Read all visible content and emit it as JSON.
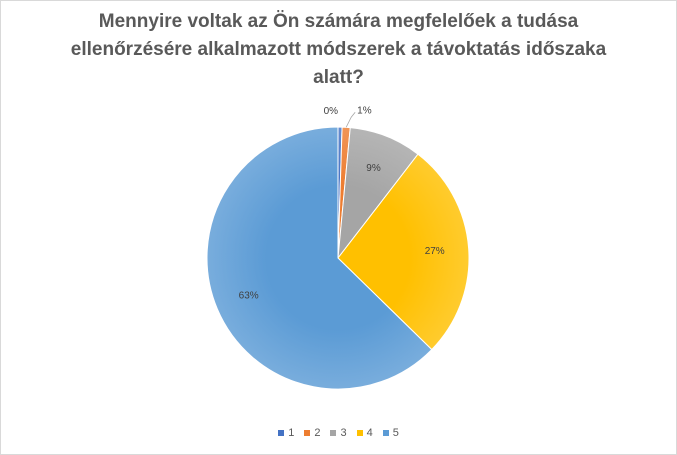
{
  "chart_data": {
    "type": "pie",
    "title_lines": [
      "Mennyire voltak az Ön számára  megfelelőek a tudása",
      "ellenőrzésére alkalmazott  módszerek a távoktatás időszaka",
      "alatt?"
    ],
    "categories": [
      "1",
      "2",
      "3",
      "4",
      "5"
    ],
    "values": [
      0.5,
      1,
      9,
      27,
      63
    ],
    "labels": [
      "0%",
      "1%",
      "9%",
      "27%",
      "63%"
    ],
    "colors": [
      "#4472c4",
      "#ed7d31",
      "#a5a5a5",
      "#ffc000",
      "#5b9bd5"
    ],
    "legend_position": "bottom"
  }
}
